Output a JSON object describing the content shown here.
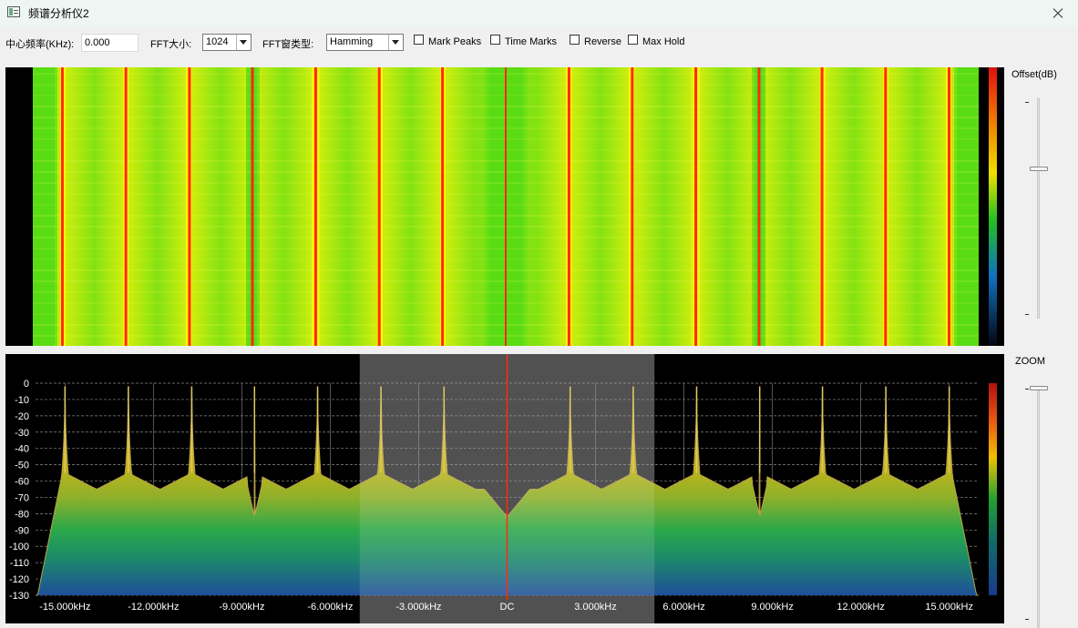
{
  "window": {
    "title": "频谱分析仪2"
  },
  "toolbar": {
    "center_freq_label": "中心频率(KHz):",
    "center_freq_value": "0.000",
    "fft_size_label": "FFT大小:",
    "fft_size_value": "1024",
    "fft_window_label": "FFT窗类型:",
    "fft_window_value": "Hamming",
    "mark_peaks_label": "Mark Peaks",
    "time_marks_label": "Time Marks",
    "reverse_label": "Reverse",
    "max_hold_label": "Max Hold",
    "mark_peaks_checked": false,
    "time_marks_checked": false,
    "reverse_checked": false,
    "max_hold_checked": false
  },
  "sliders": {
    "offset_label": "Offset(dB)",
    "offset_level": 0.32,
    "zoom_label": "ZOOM",
    "zoom_level": 0.0
  },
  "colors": {
    "trace": "#b8a14a",
    "center_line": "#ff2a10",
    "waterfall_peak": "#ff2a10",
    "selection": "#808080"
  },
  "chart_data": {
    "type": "area",
    "xlabel": "",
    "ylabel": "",
    "x_range_khz": [
      -16,
      16
    ],
    "ylim": [
      -130,
      0
    ],
    "y_ticks": [
      0,
      -10,
      -20,
      -30,
      -40,
      -50,
      -60,
      -70,
      -80,
      -90,
      -100,
      -110,
      -120,
      -130
    ],
    "x_ticks": [
      {
        "value": -15,
        "label": "-15.000kHz"
      },
      {
        "value": -12,
        "label": "-12.000kHz"
      },
      {
        "value": -9,
        "label": "-9.000kHz"
      },
      {
        "value": -6,
        "label": "-6.000kHz"
      },
      {
        "value": -3,
        "label": "-3.000kHz"
      },
      {
        "value": 0,
        "label": "DC"
      },
      {
        "value": 3,
        "label": "3.000kHz"
      },
      {
        "value": 6,
        "label": "6.000kHz"
      },
      {
        "value": 9,
        "label": "9.000kHz"
      },
      {
        "value": 12,
        "label": "12.000kHz"
      },
      {
        "value": 15,
        "label": "15.000kHz"
      }
    ],
    "grid": true,
    "selection_khz": [
      -5,
      5
    ],
    "center_marker_khz": 0,
    "peaks_khz": [
      -15,
      -12.85,
      -10.7,
      -8.57,
      -6.43,
      -4.28,
      -2.14,
      2.14,
      4.28,
      6.43,
      8.57,
      10.7,
      12.85,
      15
    ],
    "peak_level_db": -2,
    "floor_level_db": -55,
    "center_dip_db": -82,
    "dips_khz": [
      -8.57,
      8.57
    ],
    "dip_level_db": -82,
    "edge_level_db": -130
  }
}
